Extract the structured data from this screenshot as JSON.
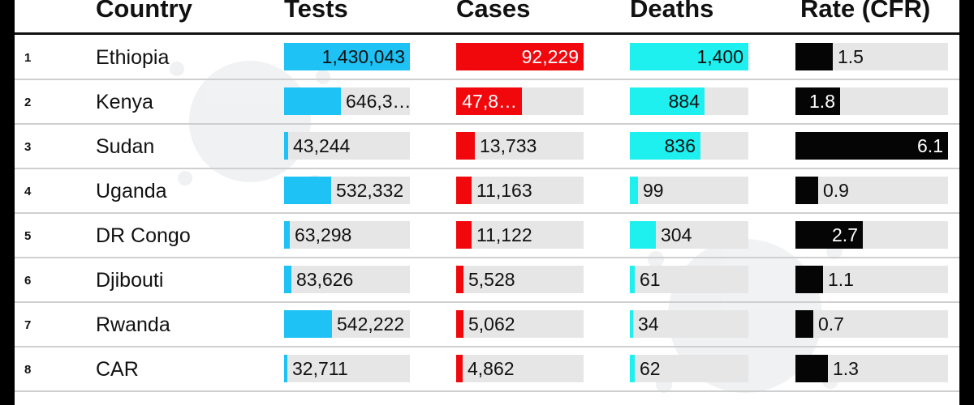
{
  "colors": {
    "tests": "#1ec2f5",
    "cases": "#f0080d",
    "deaths": "#1ef0f0",
    "rate": "#050505",
    "track": "#e6e6e6"
  },
  "headers": {
    "country": "Country",
    "tests": "Tests",
    "cases": "Cases",
    "deaths": "Deaths",
    "rate": "Rate (CFR)"
  },
  "chart_data": {
    "type": "table",
    "columns": [
      "Country",
      "Tests",
      "Cases",
      "Deaths",
      "Rate (CFR)"
    ],
    "ranges": {
      "tests": 1430043,
      "cases": 92229,
      "deaths": 1400,
      "rate": 6.1
    },
    "rows": [
      {
        "rank": "1",
        "country": "Ethiopia",
        "tests": 1430043,
        "tests_label": "1,430,043",
        "cases": 92229,
        "cases_label": "92,229",
        "deaths": 1400,
        "deaths_label": "1,400",
        "rate": 1.5,
        "rate_label": "1.5"
      },
      {
        "rank": "2",
        "country": "Kenya",
        "tests": 646300,
        "tests_label": "646,3…",
        "cases": 47800,
        "cases_label": "47,8…",
        "deaths": 884,
        "deaths_label": "884",
        "rate": 1.8,
        "rate_label": "1.8"
      },
      {
        "rank": "3",
        "country": "Sudan",
        "tests": 43244,
        "tests_label": "43,244",
        "cases": 13733,
        "cases_label": "13,733",
        "deaths": 836,
        "deaths_label": "836",
        "rate": 6.1,
        "rate_label": "6.1"
      },
      {
        "rank": "4",
        "country": "Uganda",
        "tests": 532332,
        "tests_label": "532,332",
        "cases": 11163,
        "cases_label": "11,163",
        "deaths": 99,
        "deaths_label": "99",
        "rate": 0.9,
        "rate_label": "0.9"
      },
      {
        "rank": "5",
        "country": "DR Congo",
        "tests": 63298,
        "tests_label": "63,298",
        "cases": 11122,
        "cases_label": "11,122",
        "deaths": 304,
        "deaths_label": "304",
        "rate": 2.7,
        "rate_label": "2.7"
      },
      {
        "rank": "6",
        "country": "Djibouti",
        "tests": 83626,
        "tests_label": "83,626",
        "cases": 5528,
        "cases_label": "5,528",
        "deaths": 61,
        "deaths_label": "61",
        "rate": 1.1,
        "rate_label": "1.1"
      },
      {
        "rank": "7",
        "country": "Rwanda",
        "tests": 542222,
        "tests_label": "542,222",
        "cases": 5062,
        "cases_label": "5,062",
        "deaths": 34,
        "deaths_label": "34",
        "rate": 0.7,
        "rate_label": "0.7"
      },
      {
        "rank": "8",
        "country": "CAR",
        "tests": 32711,
        "tests_label": "32,711",
        "cases": 4862,
        "cases_label": "4,862",
        "deaths": 62,
        "deaths_label": "62",
        "rate": 1.3,
        "rate_label": "1.3"
      }
    ]
  }
}
